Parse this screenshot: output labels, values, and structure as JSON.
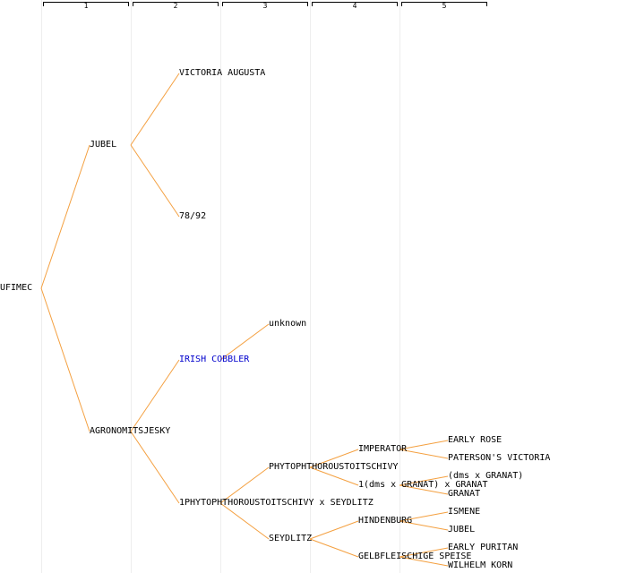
{
  "generation_headers": [
    "1",
    "2",
    "3",
    "4",
    "5"
  ],
  "colors": {
    "edge": "#f4a040",
    "text": "#000000",
    "link": "#0000cc",
    "guide": "#eeeeee"
  },
  "nodes": [
    {
      "id": "ufimec",
      "label": "UFIMEC",
      "gen": 0,
      "parent": null
    },
    {
      "id": "jubel",
      "label": "JUBEL",
      "gen": 1,
      "parent": "ufimec"
    },
    {
      "id": "victoria-augusta",
      "label": "VICTORIA AUGUSTA",
      "gen": 2,
      "parent": "jubel"
    },
    {
      "id": "n78-92",
      "label": "78/92",
      "gen": 2,
      "parent": "jubel"
    },
    {
      "id": "agronomitsjesky",
      "label": "AGRONOMITSJESKY",
      "gen": 1,
      "parent": "ufimec"
    },
    {
      "id": "irish-cobbler",
      "label": "IRISH COBBLER",
      "gen": 2,
      "parent": "agronomitsjesky",
      "link": true
    },
    {
      "id": "unknown",
      "label": "unknown",
      "gen": 3,
      "parent": "irish-cobbler"
    },
    {
      "id": "phyto-x-seydlitz",
      "label": "1PHYTOPHTHOROUSTOITSCHIVY x SEYDLITZ",
      "gen": 2,
      "parent": "agronomitsjesky"
    },
    {
      "id": "phyto",
      "label": "PHYTOPHTHOROUSTOITSCHIVY",
      "gen": 3,
      "parent": "phyto-x-seydlitz"
    },
    {
      "id": "imperator",
      "label": "IMPERATOR",
      "gen": 4,
      "parent": "phyto"
    },
    {
      "id": "early-rose",
      "label": "EARLY ROSE",
      "gen": 5,
      "parent": "imperator"
    },
    {
      "id": "patersons-victoria",
      "label": "PATERSON'S VICTORIA",
      "gen": 5,
      "parent": "imperator"
    },
    {
      "id": "dms-granat-x-granat",
      "label": "1(dms x GRANAT) x GRANAT",
      "gen": 4,
      "parent": "phyto"
    },
    {
      "id": "dms-x-granat",
      "label": "(dms x GRANAT)",
      "gen": 5,
      "parent": "dms-granat-x-granat"
    },
    {
      "id": "granat",
      "label": "GRANAT",
      "gen": 5,
      "parent": "dms-granat-x-granat"
    },
    {
      "id": "seydlitz",
      "label": "SEYDLITZ",
      "gen": 3,
      "parent": "phyto-x-seydlitz"
    },
    {
      "id": "hindenburg",
      "label": "HINDENBURG",
      "gen": 4,
      "parent": "seydlitz"
    },
    {
      "id": "ismene",
      "label": "ISMENE",
      "gen": 5,
      "parent": "hindenburg"
    },
    {
      "id": "jubel-2",
      "label": "JUBEL",
      "gen": 5,
      "parent": "hindenburg"
    },
    {
      "id": "gelbfleischige-speise",
      "label": "GELBFLEISCHIGE SPEISE",
      "gen": 4,
      "parent": "seydlitz"
    },
    {
      "id": "early-puritan",
      "label": "EARLY PURITAN",
      "gen": 5,
      "parent": "gelbfleischige-speise"
    },
    {
      "id": "wilhelm-korn",
      "label": "WILHELM KORN",
      "gen": 5,
      "parent": "gelbfleischige-speise"
    }
  ]
}
